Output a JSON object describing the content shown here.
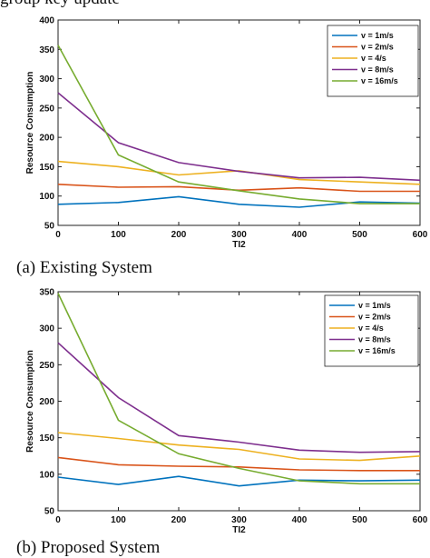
{
  "header": {
    "caption": "group key update"
  },
  "panels": [
    {
      "caption": "(a) Existing System"
    },
    {
      "caption": "(b) Proposed System"
    }
  ],
  "chart_data": [
    {
      "type": "line",
      "title": "",
      "xlabel": "TI2",
      "ylabel": "Resource Consumption",
      "x": [
        0,
        100,
        200,
        300,
        400,
        500,
        600
      ],
      "xlim": [
        0,
        600
      ],
      "ylim": [
        50,
        400
      ],
      "xticks": [
        0,
        100,
        200,
        300,
        400,
        500,
        600
      ],
      "yticks": [
        50,
        100,
        150,
        200,
        250,
        300,
        350,
        400
      ],
      "grid": false,
      "legend_position": "top-right",
      "series": [
        {
          "name": "v = 1m/s",
          "color": "#0072BD",
          "values": [
            86,
            89,
            99,
            86,
            81,
            90,
            88
          ]
        },
        {
          "name": "v = 2m/s",
          "color": "#D95319",
          "values": [
            120,
            115,
            116,
            110,
            114,
            108,
            108
          ]
        },
        {
          "name": "v = 4/s",
          "color": "#EDB120",
          "values": [
            159,
            150,
            136,
            143,
            128,
            124,
            120
          ]
        },
        {
          "name": "v = 8m/s",
          "color": "#7E2F8E",
          "values": [
            276,
            191,
            157,
            142,
            131,
            132,
            127
          ]
        },
        {
          "name": "v = 16m/s",
          "color": "#77AC30",
          "values": [
            357,
            170,
            124,
            109,
            95,
            87,
            87
          ]
        }
      ]
    },
    {
      "type": "line",
      "title": "",
      "xlabel": "TI2",
      "ylabel": "Resource Consumption",
      "x": [
        0,
        100,
        200,
        300,
        400,
        500,
        600
      ],
      "xlim": [
        0,
        600
      ],
      "ylim": [
        50,
        350
      ],
      "xticks": [
        0,
        100,
        200,
        300,
        400,
        500,
        600
      ],
      "yticks": [
        50,
        100,
        150,
        200,
        250,
        300,
        350
      ],
      "grid": false,
      "legend_position": "top-right",
      "series": [
        {
          "name": "v = 1m/s",
          "color": "#0072BD",
          "values": [
            96,
            86,
            97,
            84,
            92,
            91,
            92
          ]
        },
        {
          "name": "v = 2m/s",
          "color": "#D95319",
          "values": [
            123,
            113,
            111,
            110,
            106,
            105,
            105
          ]
        },
        {
          "name": "v = 4/s",
          "color": "#EDB120",
          "values": [
            157,
            149,
            140,
            134,
            121,
            119,
            125
          ]
        },
        {
          "name": "v = 8m/s",
          "color": "#7E2F8E",
          "values": [
            280,
            205,
            153,
            144,
            133,
            130,
            131
          ]
        },
        {
          "name": "v = 16m/s",
          "color": "#77AC30",
          "values": [
            348,
            174,
            128,
            108,
            91,
            87,
            87
          ]
        }
      ]
    }
  ]
}
